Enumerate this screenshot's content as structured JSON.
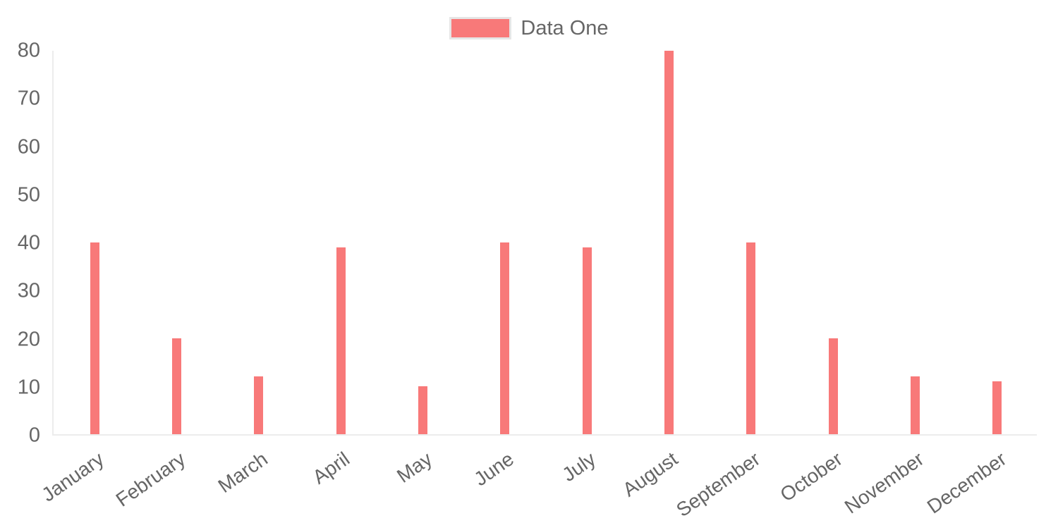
{
  "chart_data": {
    "type": "bar",
    "title": "",
    "categories": [
      "January",
      "February",
      "March",
      "April",
      "May",
      "June",
      "July",
      "August",
      "September",
      "October",
      "November",
      "December"
    ],
    "series": [
      {
        "name": "Data One",
        "color": "#f87979",
        "values": [
          40,
          20,
          12,
          39,
          10,
          40,
          39,
          80,
          40,
          20,
          12,
          11
        ]
      }
    ],
    "xlabel": "",
    "ylabel": "",
    "ylim": [
      0,
      80
    ],
    "y_ticks": [
      0,
      10,
      20,
      30,
      40,
      50,
      60,
      70,
      80
    ],
    "grid": "off",
    "legend_position": "top-center",
    "x_label_rotation_deg": -35,
    "colors": {
      "bar": "#f87979",
      "axis_line": "#ececec",
      "tick_text": "#666666",
      "legend_text": "#666666",
      "legend_swatch_border": "#e6e6e6",
      "background": "#ffffff"
    }
  }
}
